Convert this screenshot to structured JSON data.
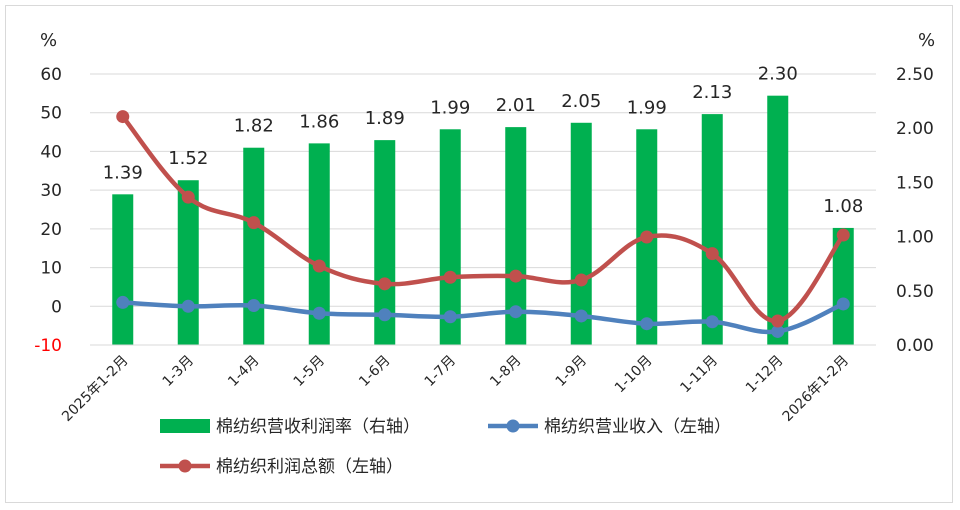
{
  "chart_data": {
    "type": "bar+line",
    "categories": [
      "2025年1-2月",
      "1-3月",
      "1-4月",
      "1-5月",
      "1-6月",
      "1-7月",
      "1-8月",
      "1-9月",
      "1-10月",
      "1-11月",
      "1-12月",
      "2026年1-2月"
    ],
    "left_axis": {
      "unit": "%",
      "ylim": [
        -10,
        60
      ],
      "ticks": [
        "60",
        "50",
        "40",
        "30",
        "20",
        "10",
        "0",
        "-10"
      ]
    },
    "right_axis": {
      "unit": "%",
      "ylim": [
        0,
        2.5
      ],
      "ticks": [
        "2.50",
        "2.00",
        "1.50",
        "1.00",
        "0.50",
        "0.00"
      ]
    },
    "series": [
      {
        "name": "棉纺织营收利润率（右轴）",
        "type": "bar",
        "axis": "right",
        "color": "#00b050",
        "values": [
          1.39,
          1.52,
          1.82,
          1.86,
          1.89,
          1.99,
          2.01,
          2.05,
          1.99,
          2.13,
          2.3,
          1.08
        ],
        "labels": [
          "1.39",
          "1.52",
          "1.82",
          "1.86",
          "1.89",
          "1.99",
          "2.01",
          "2.05",
          "1.99",
          "2.13",
          "2.30",
          "1.08"
        ]
      },
      {
        "name": "棉纺织营业收入（左轴）",
        "type": "line",
        "axis": "left",
        "color": "#4f81bd",
        "values": [
          1.0,
          0.0,
          0.2,
          -1.8,
          -2.2,
          -2.7,
          -1.4,
          -2.5,
          -4.5,
          -4.0,
          -6.5,
          0.6
        ]
      },
      {
        "name": "棉纺织利润总额（左轴）",
        "type": "line",
        "axis": "left",
        "color": "#c0504d",
        "values": [
          49.0,
          28.2,
          21.6,
          10.4,
          5.8,
          7.5,
          7.8,
          6.8,
          17.9,
          13.6,
          -3.8,
          18.4
        ]
      }
    ],
    "grid": true,
    "legend": "bottom"
  }
}
